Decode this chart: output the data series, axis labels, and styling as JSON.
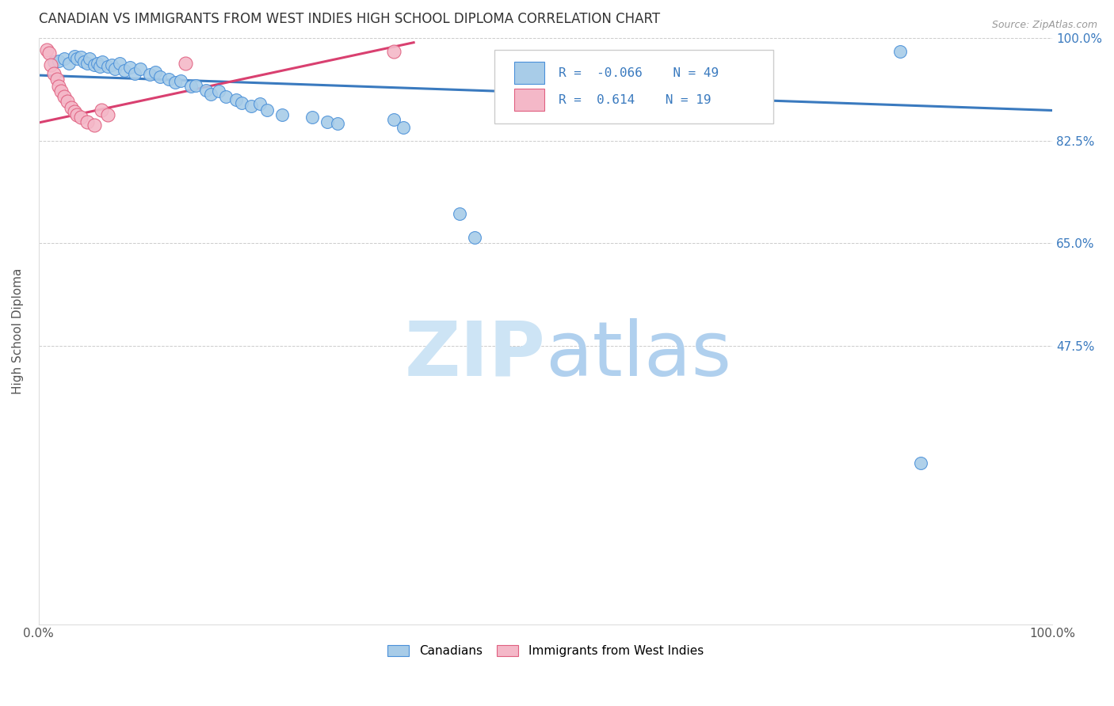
{
  "title": "CANADIAN VS IMMIGRANTS FROM WEST INDIES HIGH SCHOOL DIPLOMA CORRELATION CHART",
  "source": "Source: ZipAtlas.com",
  "ylabel": "High School Diploma",
  "xlim": [
    0.0,
    1.0
  ],
  "ylim": [
    0.0,
    1.0
  ],
  "yticks": [
    0.0,
    0.475,
    0.65,
    0.825,
    1.0
  ],
  "xticks": [
    0.0,
    0.25,
    0.5,
    0.75,
    1.0
  ],
  "xtick_labels": [
    "0.0%",
    "",
    "",
    "",
    "100.0%"
  ],
  "right_ytick_labels": [
    "",
    "47.5%",
    "65.0%",
    "82.5%",
    "100.0%"
  ],
  "canadians_R": -0.066,
  "canadians_N": 49,
  "westindies_R": 0.614,
  "westindies_N": 19,
  "legend_entries": [
    "Canadians",
    "Immigrants from West Indies"
  ],
  "blue_fill": "#a8cce8",
  "blue_edge": "#4a90d9",
  "pink_fill": "#f4b8c8",
  "pink_edge": "#e06080",
  "blue_line": "#3a7abf",
  "pink_line": "#d94070",
  "background_color": "#ffffff",
  "watermark_zip_color": "#cde4f5",
  "watermark_atlas_color": "#b0d0ee",
  "grid_color": "#cccccc",
  "title_color": "#333333",
  "right_tick_color": "#3a7abf",
  "legend_text_color": "#3a7abf",
  "canadians_x": [
    0.015,
    0.02,
    0.025,
    0.03,
    0.035,
    0.038,
    0.042,
    0.045,
    0.048,
    0.05,
    0.055,
    0.058,
    0.06,
    0.063,
    0.068,
    0.072,
    0.075,
    0.08,
    0.085,
    0.09,
    0.095,
    0.1,
    0.11,
    0.115,
    0.12,
    0.128,
    0.135,
    0.14,
    0.15,
    0.155,
    0.165,
    0.17,
    0.178,
    0.185,
    0.195,
    0.2,
    0.21,
    0.218,
    0.225,
    0.24,
    0.27,
    0.285,
    0.295,
    0.35,
    0.36,
    0.415,
    0.43,
    0.85,
    0.87
  ],
  "canadians_y": [
    0.96,
    0.962,
    0.965,
    0.958,
    0.97,
    0.965,
    0.968,
    0.96,
    0.958,
    0.965,
    0.955,
    0.958,
    0.952,
    0.96,
    0.952,
    0.955,
    0.948,
    0.958,
    0.945,
    0.95,
    0.94,
    0.948,
    0.938,
    0.942,
    0.935,
    0.93,
    0.925,
    0.928,
    0.918,
    0.92,
    0.912,
    0.905,
    0.91,
    0.9,
    0.895,
    0.89,
    0.885,
    0.888,
    0.878,
    0.87,
    0.865,
    0.858,
    0.855,
    0.862,
    0.848,
    0.7,
    0.66,
    0.978,
    0.275
  ],
  "westindies_x": [
    0.008,
    0.01,
    0.012,
    0.015,
    0.018,
    0.02,
    0.022,
    0.025,
    0.028,
    0.032,
    0.035,
    0.038,
    0.042,
    0.048,
    0.055,
    0.062,
    0.068,
    0.145,
    0.35
  ],
  "westindies_y": [
    0.98,
    0.975,
    0.955,
    0.94,
    0.93,
    0.918,
    0.91,
    0.9,
    0.892,
    0.882,
    0.875,
    0.87,
    0.865,
    0.858,
    0.852,
    0.878,
    0.87,
    0.958,
    0.978
  ]
}
